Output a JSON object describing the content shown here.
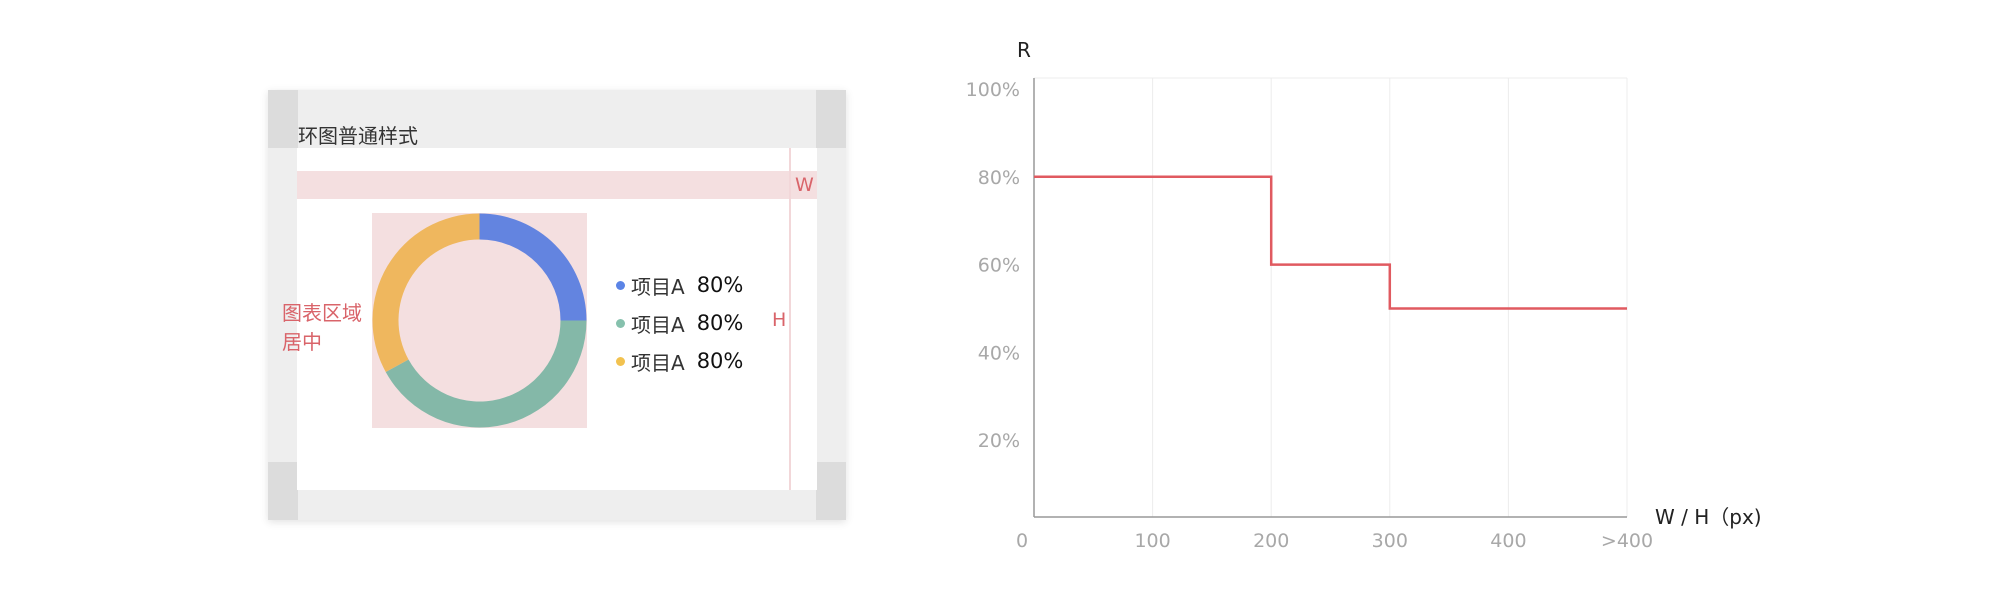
{
  "card": {
    "title": "环图普通样式",
    "w_label": "W",
    "h_label": "H",
    "center_note_line1": "图表区域",
    "center_note_line2": "居中"
  },
  "donut": {
    "segments": [
      {
        "color": "#6384e0",
        "fraction": 0.25
      },
      {
        "color": "#84b8a8",
        "fraction": 0.42
      },
      {
        "color": "#efb75e",
        "fraction": 0.33
      }
    ]
  },
  "legend": [
    {
      "name": "项目A",
      "value": "80%",
      "color": "#5b84e6"
    },
    {
      "name": "项目A",
      "value": "80%",
      "color": "#86c1ad"
    },
    {
      "name": "项目A",
      "value": "80%",
      "color": "#f2c24f"
    }
  ],
  "colors": {
    "annotation": "#d9646a",
    "annotation_fill": "#f4dfe0",
    "step_line": "#e05a60"
  },
  "chart_data": {
    "type": "line",
    "ylabel": "R",
    "xlabel": "W / H（px)",
    "x_ticks": [
      "0",
      "100",
      "200",
      "300",
      "400",
      ">400"
    ],
    "y_ticks": [
      "100%",
      "80%",
      "60%",
      "40%",
      "20%"
    ],
    "xlim": [
      0,
      500
    ],
    "ylim": [
      0,
      100
    ],
    "grid": true,
    "series": [
      {
        "x": [
          0,
          200,
          200,
          300,
          300,
          500
        ],
        "y": [
          80,
          80,
          60,
          60,
          50,
          50
        ]
      }
    ]
  }
}
